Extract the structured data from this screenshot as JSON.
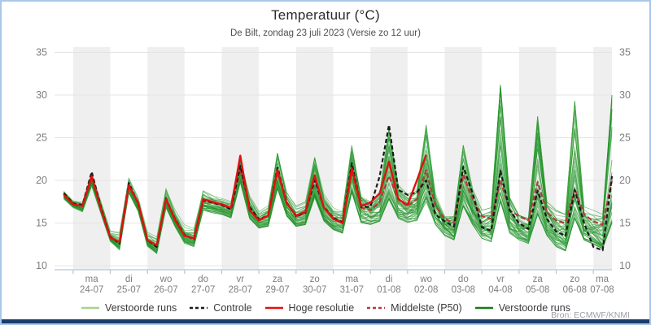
{
  "header": {
    "title": "Temperatuur (°C)",
    "subtitle": "De Bilt, zondag 23 juli 2023 (Versie zo 12 uur)"
  },
  "source": {
    "credit": "Bron: ECMWF/KNMI"
  },
  "chart_data": {
    "type": "line",
    "title": "Temperatuur (°C)",
    "subtitle": "De Bilt, zondag 23 juli 2023 (Versie zo 12 uur)",
    "ylabel": "",
    "ylim": [
      10,
      35
    ],
    "yticks": [
      10,
      15,
      20,
      25,
      30,
      35
    ],
    "grid": true,
    "band_color": "#efefef",
    "axis_color": "#b7c6da",
    "grid_color": "#e4e4e4",
    "label_color": "#7f7f7f",
    "time_start_hours_offset": 6,
    "time_step_hours": 6,
    "time_span_hours": 360,
    "days": [
      {
        "day": "ma",
        "date": "24-07"
      },
      {
        "day": "di",
        "date": "25-07"
      },
      {
        "day": "wo",
        "date": "26-07"
      },
      {
        "day": "do",
        "date": "27-07"
      },
      {
        "day": "vr",
        "date": "28-07"
      },
      {
        "day": "za",
        "date": "29-07"
      },
      {
        "day": "zo",
        "date": "30-07"
      },
      {
        "day": "ma",
        "date": "31-07"
      },
      {
        "day": "di",
        "date": "01-08"
      },
      {
        "day": "wo",
        "date": "02-08"
      },
      {
        "day": "do",
        "date": "03-08"
      },
      {
        "day": "vr",
        "date": "04-08"
      },
      {
        "day": "za",
        "date": "05-08"
      },
      {
        "day": "zo",
        "date": "06-08"
      },
      {
        "day": "ma",
        "date": "07-08"
      }
    ],
    "series": [
      {
        "name": "Controle",
        "color": "#1a1a1a",
        "dash": "5,3",
        "width": 2.2,
        "values": [
          18.5,
          17.3,
          17.1,
          21.0,
          16.8,
          13.4,
          12.6,
          19.7,
          17.3,
          13.0,
          12.2,
          17.9,
          15.4,
          13.6,
          13.1,
          17.7,
          17.4,
          17.1,
          16.6,
          21.7,
          16.9,
          15.4,
          15.9,
          21.5,
          17.4,
          15.8,
          16.2,
          20.0,
          16.9,
          15.6,
          15.1,
          22.0,
          16.9,
          16.9,
          20.5,
          26.5,
          18.9,
          18.3,
          18.6,
          20.0,
          16.0,
          15.2,
          14.6,
          21.6,
          18.5,
          14.5,
          14.1,
          21.1,
          16.5,
          15.0,
          14.3,
          18.8,
          15.5,
          14.0,
          13.5,
          18.9,
          15.0,
          12.2,
          11.8,
          20.5
        ]
      },
      {
        "name": "Hoge resolutie",
        "color": "#e01010",
        "dash": "",
        "width": 2.4,
        "values": [
          18.3,
          17.2,
          17.0,
          20.5,
          16.6,
          13.3,
          12.8,
          19.4,
          17.4,
          13.0,
          12.4,
          17.8,
          15.3,
          13.5,
          13.2,
          17.8,
          17.5,
          17.2,
          16.8,
          22.9,
          16.5,
          15.3,
          15.9,
          21.2,
          17.3,
          15.9,
          16.3,
          20.6,
          16.8,
          15.5,
          15.0,
          21.4,
          17.0,
          17.4,
          18.5,
          22.2,
          17.8,
          17.1,
          20.0,
          23.0
        ]
      },
      {
        "name": "Middelste (P50)",
        "color": "#b23b3b",
        "dash": "6,3",
        "width": 2.2,
        "values": [
          18.4,
          17.2,
          17.0,
          20.6,
          16.7,
          13.4,
          12.7,
          19.5,
          17.3,
          13.0,
          12.3,
          17.8,
          15.4,
          13.6,
          13.1,
          17.6,
          17.4,
          17.1,
          16.7,
          21.3,
          16.8,
          15.4,
          15.9,
          21.0,
          17.4,
          15.8,
          16.2,
          20.2,
          16.8,
          15.5,
          15.1,
          21.0,
          16.8,
          16.5,
          17.5,
          20.5,
          17.8,
          17.0,
          17.8,
          21.2,
          17.0,
          15.5,
          15.0,
          20.7,
          17.8,
          15.8,
          15.5,
          20.0,
          16.5,
          15.8,
          15.3,
          19.8,
          16.3,
          15.3,
          15.0,
          19.0,
          16.0,
          15.2,
          14.8,
          20.0
        ]
      }
    ],
    "ensemble": {
      "name": "Verstoorde runs",
      "member_count": 50,
      "colors": [
        "#2f9e41",
        "#1e8b1e",
        "#49ab49"
      ],
      "envelope_min": [
        17.8,
        16.8,
        16.3,
        19.3,
        16.0,
        12.8,
        11.8,
        18.5,
        16.3,
        12.2,
        11.4,
        16.8,
        14.5,
        12.6,
        12.2,
        16.5,
        16.2,
        16.0,
        15.6,
        19.8,
        15.5,
        14.4,
        14.6,
        19.0,
        15.8,
        14.6,
        14.8,
        18.0,
        15.2,
        14.2,
        13.8,
        18.6,
        15.0,
        14.8,
        15.2,
        17.8,
        15.5,
        15.0,
        15.2,
        17.5,
        14.8,
        13.5,
        13.0,
        17.0,
        14.8,
        13.2,
        12.8,
        17.5,
        13.8,
        13.0,
        12.6,
        16.0,
        13.5,
        12.2,
        11.7,
        15.5,
        13.0,
        12.5,
        12.0,
        15.0
      ],
      "envelope_max": [
        19.0,
        17.8,
        17.7,
        21.2,
        17.8,
        14.2,
        14.0,
        20.3,
        18.0,
        14.0,
        13.4,
        19.0,
        16.5,
        14.8,
        14.5,
        18.8,
        18.4,
        18.0,
        17.6,
        22.5,
        18.2,
        16.4,
        17.0,
        23.2,
        18.6,
        17.0,
        17.5,
        22.7,
        18.4,
        16.8,
        16.5,
        24.3,
        18.8,
        17.8,
        18.8,
        26.0,
        19.5,
        18.5,
        19.0,
        26.5,
        19.0,
        16.5,
        16.2,
        24.1,
        19.0,
        16.5,
        16.8,
        31.2,
        18.0,
        16.0,
        15.6,
        27.5,
        17.5,
        16.5,
        16.0,
        29.3,
        17.0,
        16.5,
        16.0,
        30.0
      ]
    },
    "legend": [
      {
        "label": "Verstoorde runs",
        "color": "#a9d18e",
        "dash": ""
      },
      {
        "label": "Controle",
        "color": "#1a1a1a",
        "dash": "4,3"
      },
      {
        "label": "Hoge resolutie",
        "color": "#e01010",
        "dash": ""
      },
      {
        "label": "Middelste (P50)",
        "color": "#b23b3b",
        "dash": "4,3"
      },
      {
        "label": "Verstoorde runs",
        "color": "#177a17",
        "dash": ""
      }
    ]
  }
}
